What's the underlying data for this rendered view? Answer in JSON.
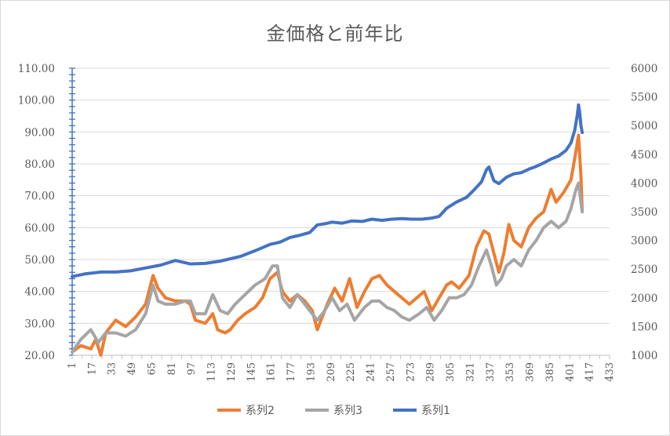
{
  "chart_data": {
    "type": "line",
    "title": "金価格と前年比",
    "x_axis": {
      "min": 1,
      "max": 433,
      "tick_labels": [
        "1",
        "17",
        "33",
        "49",
        "65",
        "81",
        "97",
        "113",
        "129",
        "145",
        "161",
        "177",
        "193",
        "209",
        "225",
        "241",
        "257",
        "273",
        "289",
        "305",
        "321",
        "337",
        "353",
        "369",
        "385",
        "401",
        "417",
        "433"
      ]
    },
    "y_left": {
      "min": 20,
      "max": 110,
      "step": 10,
      "tick_labels": [
        "20.00",
        "30.00",
        "40.00",
        "50.00",
        "60.00",
        "70.00",
        "80.00",
        "90.00",
        "100.00",
        "110.00"
      ]
    },
    "y_right": {
      "min": 1000,
      "max": 6000,
      "step": 500,
      "tick_labels": [
        "1000",
        "1500",
        "2000",
        "2500",
        "3000",
        "3500",
        "4000",
        "4500",
        "5000",
        "5500",
        "6000"
      ]
    },
    "grid": true,
    "legend_position": "bottom",
    "series": [
      {
        "name": "系列2",
        "axis": "left",
        "color": "#ED7D31",
        "points": [
          [
            1,
            21
          ],
          [
            8,
            23
          ],
          [
            16,
            22
          ],
          [
            20,
            25
          ],
          [
            24,
            20
          ],
          [
            28,
            27
          ],
          [
            36,
            31
          ],
          [
            44,
            29
          ],
          [
            52,
            32
          ],
          [
            60,
            36
          ],
          [
            66,
            45
          ],
          [
            70,
            41
          ],
          [
            76,
            38
          ],
          [
            84,
            37
          ],
          [
            92,
            37
          ],
          [
            96,
            36
          ],
          [
            100,
            31
          ],
          [
            108,
            30
          ],
          [
            114,
            33
          ],
          [
            118,
            28
          ],
          [
            124,
            27
          ],
          [
            128,
            28
          ],
          [
            134,
            31
          ],
          [
            140,
            33
          ],
          [
            148,
            35
          ],
          [
            154,
            38
          ],
          [
            160,
            44
          ],
          [
            166,
            46
          ],
          [
            170,
            40
          ],
          [
            176,
            37
          ],
          [
            182,
            39
          ],
          [
            188,
            37
          ],
          [
            194,
            34
          ],
          [
            198,
            28
          ],
          [
            206,
            36
          ],
          [
            212,
            41
          ],
          [
            218,
            37
          ],
          [
            224,
            44
          ],
          [
            230,
            35
          ],
          [
            236,
            40
          ],
          [
            242,
            44
          ],
          [
            248,
            45
          ],
          [
            254,
            42
          ],
          [
            260,
            40
          ],
          [
            266,
            38
          ],
          [
            272,
            36
          ],
          [
            278,
            38
          ],
          [
            284,
            40
          ],
          [
            290,
            34
          ],
          [
            296,
            38
          ],
          [
            302,
            42
          ],
          [
            306,
            43
          ],
          [
            312,
            41
          ],
          [
            316,
            43
          ],
          [
            320,
            45
          ],
          [
            326,
            54
          ],
          [
            332,
            59
          ],
          [
            336,
            58
          ],
          [
            340,
            52
          ],
          [
            344,
            46
          ],
          [
            348,
            52
          ],
          [
            352,
            61
          ],
          [
            356,
            56
          ],
          [
            362,
            54
          ],
          [
            368,
            60
          ],
          [
            374,
            63
          ],
          [
            380,
            65
          ],
          [
            386,
            72
          ],
          [
            390,
            68
          ],
          [
            396,
            71
          ],
          [
            402,
            75
          ],
          [
            406,
            84
          ],
          [
            408,
            89
          ],
          [
            410,
            76
          ],
          [
            411,
            65
          ]
        ]
      },
      {
        "name": "系列3",
        "axis": "left",
        "color": "#A5A5A5",
        "points": [
          [
            1,
            21
          ],
          [
            8,
            25
          ],
          [
            16,
            28
          ],
          [
            22,
            24
          ],
          [
            28,
            27
          ],
          [
            36,
            27
          ],
          [
            44,
            26
          ],
          [
            52,
            28
          ],
          [
            60,
            33
          ],
          [
            66,
            42
          ],
          [
            70,
            37
          ],
          [
            76,
            36
          ],
          [
            84,
            36
          ],
          [
            92,
            37
          ],
          [
            96,
            37
          ],
          [
            100,
            33
          ],
          [
            108,
            33
          ],
          [
            114,
            39
          ],
          [
            120,
            34
          ],
          [
            126,
            33
          ],
          [
            132,
            36
          ],
          [
            140,
            39
          ],
          [
            148,
            42
          ],
          [
            156,
            44
          ],
          [
            162,
            48
          ],
          [
            166,
            48
          ],
          [
            170,
            38
          ],
          [
            176,
            35
          ],
          [
            182,
            39
          ],
          [
            188,
            36
          ],
          [
            194,
            33
          ],
          [
            198,
            31
          ],
          [
            204,
            34
          ],
          [
            210,
            38
          ],
          [
            216,
            34
          ],
          [
            222,
            36
          ],
          [
            228,
            31
          ],
          [
            236,
            35
          ],
          [
            242,
            37
          ],
          [
            248,
            37
          ],
          [
            254,
            35
          ],
          [
            260,
            34
          ],
          [
            266,
            32
          ],
          [
            272,
            31
          ],
          [
            280,
            33
          ],
          [
            286,
            35
          ],
          [
            292,
            31
          ],
          [
            298,
            34
          ],
          [
            304,
            38
          ],
          [
            310,
            38
          ],
          [
            316,
            39
          ],
          [
            322,
            42
          ],
          [
            328,
            48
          ],
          [
            334,
            53
          ],
          [
            338,
            48
          ],
          [
            342,
            42
          ],
          [
            346,
            44
          ],
          [
            350,
            48
          ],
          [
            356,
            50
          ],
          [
            362,
            48
          ],
          [
            368,
            53
          ],
          [
            374,
            56
          ],
          [
            380,
            60
          ],
          [
            386,
            62
          ],
          [
            392,
            60
          ],
          [
            398,
            62
          ],
          [
            402,
            66
          ],
          [
            406,
            72
          ],
          [
            408,
            74
          ],
          [
            410,
            68
          ],
          [
            411,
            65
          ]
        ]
      },
      {
        "name": "系列1",
        "axis": "right",
        "color": "#4472C4",
        "points": [
          [
            1,
            2370
          ],
          [
            12,
            2420
          ],
          [
            24,
            2450
          ],
          [
            36,
            2450
          ],
          [
            48,
            2470
          ],
          [
            60,
            2520
          ],
          [
            72,
            2570
          ],
          [
            84,
            2650
          ],
          [
            96,
            2590
          ],
          [
            108,
            2600
          ],
          [
            120,
            2640
          ],
          [
            136,
            2720
          ],
          [
            148,
            2820
          ],
          [
            160,
            2930
          ],
          [
            168,
            2970
          ],
          [
            176,
            3050
          ],
          [
            184,
            3090
          ],
          [
            192,
            3140
          ],
          [
            198,
            3270
          ],
          [
            204,
            3290
          ],
          [
            210,
            3320
          ],
          [
            218,
            3300
          ],
          [
            226,
            3340
          ],
          [
            234,
            3330
          ],
          [
            242,
            3370
          ],
          [
            250,
            3350
          ],
          [
            258,
            3370
          ],
          [
            266,
            3380
          ],
          [
            274,
            3370
          ],
          [
            282,
            3370
          ],
          [
            290,
            3390
          ],
          [
            296,
            3420
          ],
          [
            302,
            3560
          ],
          [
            310,
            3670
          ],
          [
            318,
            3750
          ],
          [
            324,
            3880
          ],
          [
            330,
            4020
          ],
          [
            334,
            4230
          ],
          [
            336,
            4280
          ],
          [
            340,
            4040
          ],
          [
            344,
            3990
          ],
          [
            350,
            4100
          ],
          [
            356,
            4160
          ],
          [
            362,
            4180
          ],
          [
            368,
            4240
          ],
          [
            374,
            4290
          ],
          [
            380,
            4350
          ],
          [
            386,
            4420
          ],
          [
            392,
            4470
          ],
          [
            398,
            4570
          ],
          [
            402,
            4700
          ],
          [
            405,
            4920
          ],
          [
            407,
            5180
          ],
          [
            408,
            5360
          ],
          [
            409,
            5230
          ],
          [
            410,
            5000
          ],
          [
            411,
            4880
          ]
        ]
      }
    ]
  }
}
